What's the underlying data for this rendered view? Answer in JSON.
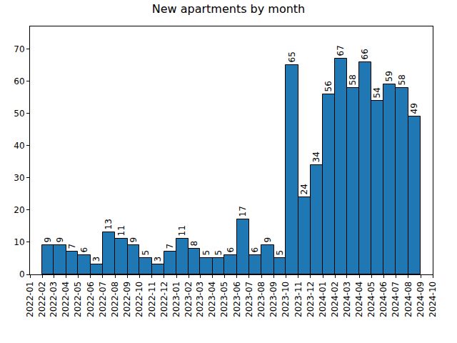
{
  "chart_data": {
    "type": "histogram",
    "title": "New apartments by month",
    "bins": [
      "2022-02",
      "2022-03",
      "2022-04",
      "2022-05",
      "2022-06",
      "2022-07",
      "2022-08",
      "2022-09",
      "2022-10",
      "2022-11",
      "2022-12",
      "2023-01",
      "2023-02",
      "2023-03",
      "2023-04",
      "2023-05",
      "2023-06",
      "2023-07",
      "2023-08",
      "2023-09",
      "2023-10",
      "2023-11",
      "2023-12",
      "2024-01",
      "2024-02",
      "2024-03",
      "2024-04",
      "2024-05",
      "2024-06",
      "2024-07",
      "2024-08",
      "2024-09"
    ],
    "values": [
      9,
      9,
      7,
      6,
      3,
      13,
      11,
      9,
      5,
      3,
      7,
      11,
      8,
      5,
      5,
      6,
      17,
      6,
      9,
      5,
      65,
      24,
      34,
      56,
      67,
      58,
      66,
      54,
      59,
      58,
      49
    ],
    "color": "#1f77b4",
    "data_labels": true,
    "grid": false,
    "xlim": [
      "2022-01",
      "2024-10"
    ],
    "xticks": [
      "2022-01",
      "2022-02",
      "2022-03",
      "2022-04",
      "2022-05",
      "2022-06",
      "2022-07",
      "2022-08",
      "2022-09",
      "2022-10",
      "2022-11",
      "2022-12",
      "2023-01",
      "2023-02",
      "2023-03",
      "2023-04",
      "2023-05",
      "2023-06",
      "2023-07",
      "2023-08",
      "2023-09",
      "2023-10",
      "2023-11",
      "2023-12",
      "2024-01",
      "2024-02",
      "2024-03",
      "2024-04",
      "2024-05",
      "2024-06",
      "2024-07",
      "2024-08",
      "2024-09",
      "2024-10"
    ],
    "ylim": [
      0,
      77
    ],
    "yticks": [
      0,
      10,
      20,
      30,
      40,
      50,
      60,
      70
    ]
  }
}
